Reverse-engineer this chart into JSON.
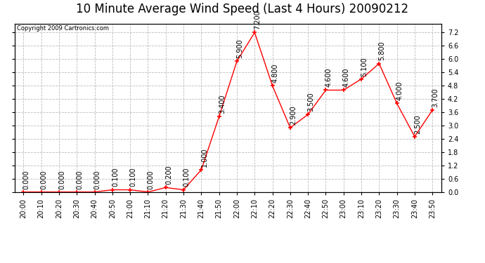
{
  "title": "10 Minute Average Wind Speed (Last 4 Hours) 20090212",
  "copyright": "Copyright 2009 Cartronics.com",
  "x_labels": [
    "20:00",
    "20:10",
    "20:20",
    "20:30",
    "20:40",
    "20:50",
    "21:00",
    "21:10",
    "21:20",
    "21:30",
    "21:40",
    "21:50",
    "22:00",
    "22:10",
    "22:20",
    "22:30",
    "22:40",
    "22:50",
    "23:00",
    "23:10",
    "23:20",
    "23:30",
    "23:40",
    "23:50"
  ],
  "y_values": [
    0.0,
    0.0,
    0.0,
    0.0,
    0.0,
    0.1,
    0.1,
    0.0,
    0.2,
    0.1,
    1.0,
    3.4,
    5.9,
    7.2,
    4.8,
    2.9,
    3.5,
    4.6,
    4.6,
    5.1,
    5.8,
    4.0,
    2.5,
    3.7
  ],
  "point_labels": [
    "0.000",
    "0.000",
    "0.000",
    "0.000",
    "0.000",
    "0.100",
    "0.100",
    "0.000",
    "0.200",
    "0.100",
    "1.000",
    "3.400",
    "5.900",
    "7.200",
    "4.800",
    "2.900",
    "3.500",
    "4.600",
    "4.600",
    "5.100",
    "5.800",
    "4.000",
    "2.500",
    "3.700"
  ],
  "line_color": "#ff0000",
  "marker_color": "#ff0000",
  "bg_color": "#ffffff",
  "grid_color": "#bbbbbb",
  "ylim": [
    0.0,
    7.6
  ],
  "yticks": [
    0.0,
    0.6,
    1.2,
    1.8,
    2.4,
    3.0,
    3.6,
    4.2,
    4.8,
    5.4,
    6.0,
    6.6,
    7.2
  ],
  "title_fontsize": 12,
  "label_fontsize": 7,
  "annotation_fontsize": 7
}
